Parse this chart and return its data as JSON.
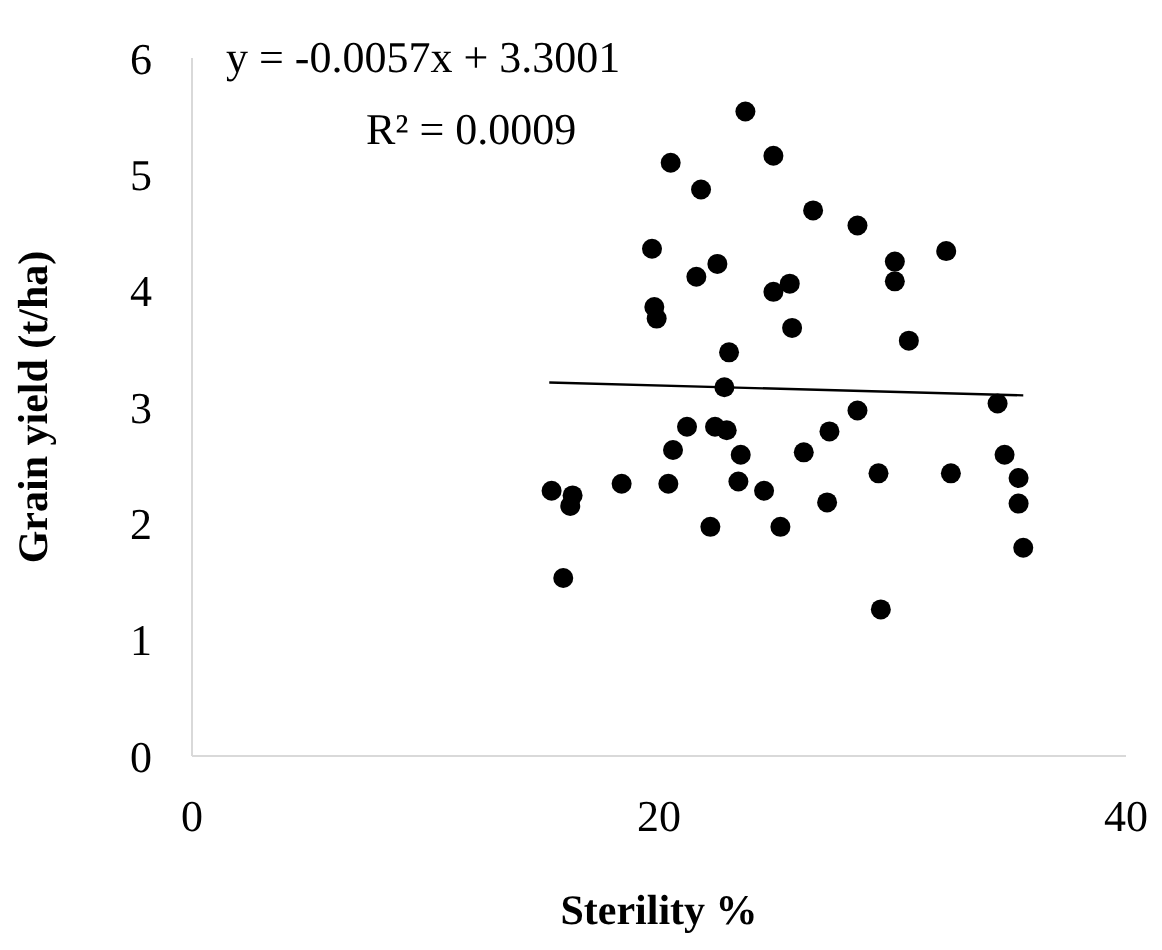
{
  "chart_data": {
    "type": "scatter",
    "xlabel": "Sterility %",
    "ylabel": "Grain yield  (t/ha)",
    "xlim": [
      0,
      40
    ],
    "xticks": [
      0,
      20,
      40
    ],
    "ylim": [
      0,
      6
    ],
    "yticks": [
      0,
      1,
      2,
      3,
      4,
      5,
      6
    ],
    "annotations": [
      "y = -0.0057x + 3.3001",
      "R² = 0.0009"
    ],
    "series": [
      {
        "type": "scatter",
        "color": "#000000",
        "marker": "circle",
        "x": [
          23.7,
          20.5,
          24.9,
          21.8,
          26.6,
          28.5,
          19.7,
          32.3,
          22.5,
          30.1,
          21.6,
          30.1,
          25.6,
          24.9,
          19.8,
          19.9,
          25.7,
          30.7,
          23.0,
          22.8,
          34.5,
          28.5,
          21.2,
          22.4,
          22.9,
          27.3,
          20.6,
          23.5,
          26.2,
          34.8,
          29.4,
          32.5,
          35.4,
          18.4,
          20.4,
          23.4,
          15.4,
          24.5,
          16.3,
          16.2,
          27.2,
          35.4,
          22.2,
          25.2,
          35.6,
          15.9,
          29.5
        ],
        "values": [
          5.54,
          5.1,
          5.16,
          4.87,
          4.69,
          4.56,
          4.36,
          4.34,
          4.23,
          4.25,
          4.12,
          4.08,
          4.06,
          3.99,
          3.86,
          3.76,
          3.68,
          3.57,
          3.47,
          3.17,
          3.03,
          2.97,
          2.83,
          2.83,
          2.8,
          2.79,
          2.63,
          2.59,
          2.61,
          2.59,
          2.43,
          2.43,
          2.39,
          2.34,
          2.34,
          2.36,
          2.28,
          2.28,
          2.24,
          2.15,
          2.18,
          2.17,
          1.97,
          1.97,
          1.79,
          1.53,
          1.26
        ]
      },
      {
        "type": "line",
        "color": "#000000",
        "x": [
          15.3,
          35.6
        ],
        "values": [
          3.21,
          3.1
        ]
      }
    ]
  }
}
